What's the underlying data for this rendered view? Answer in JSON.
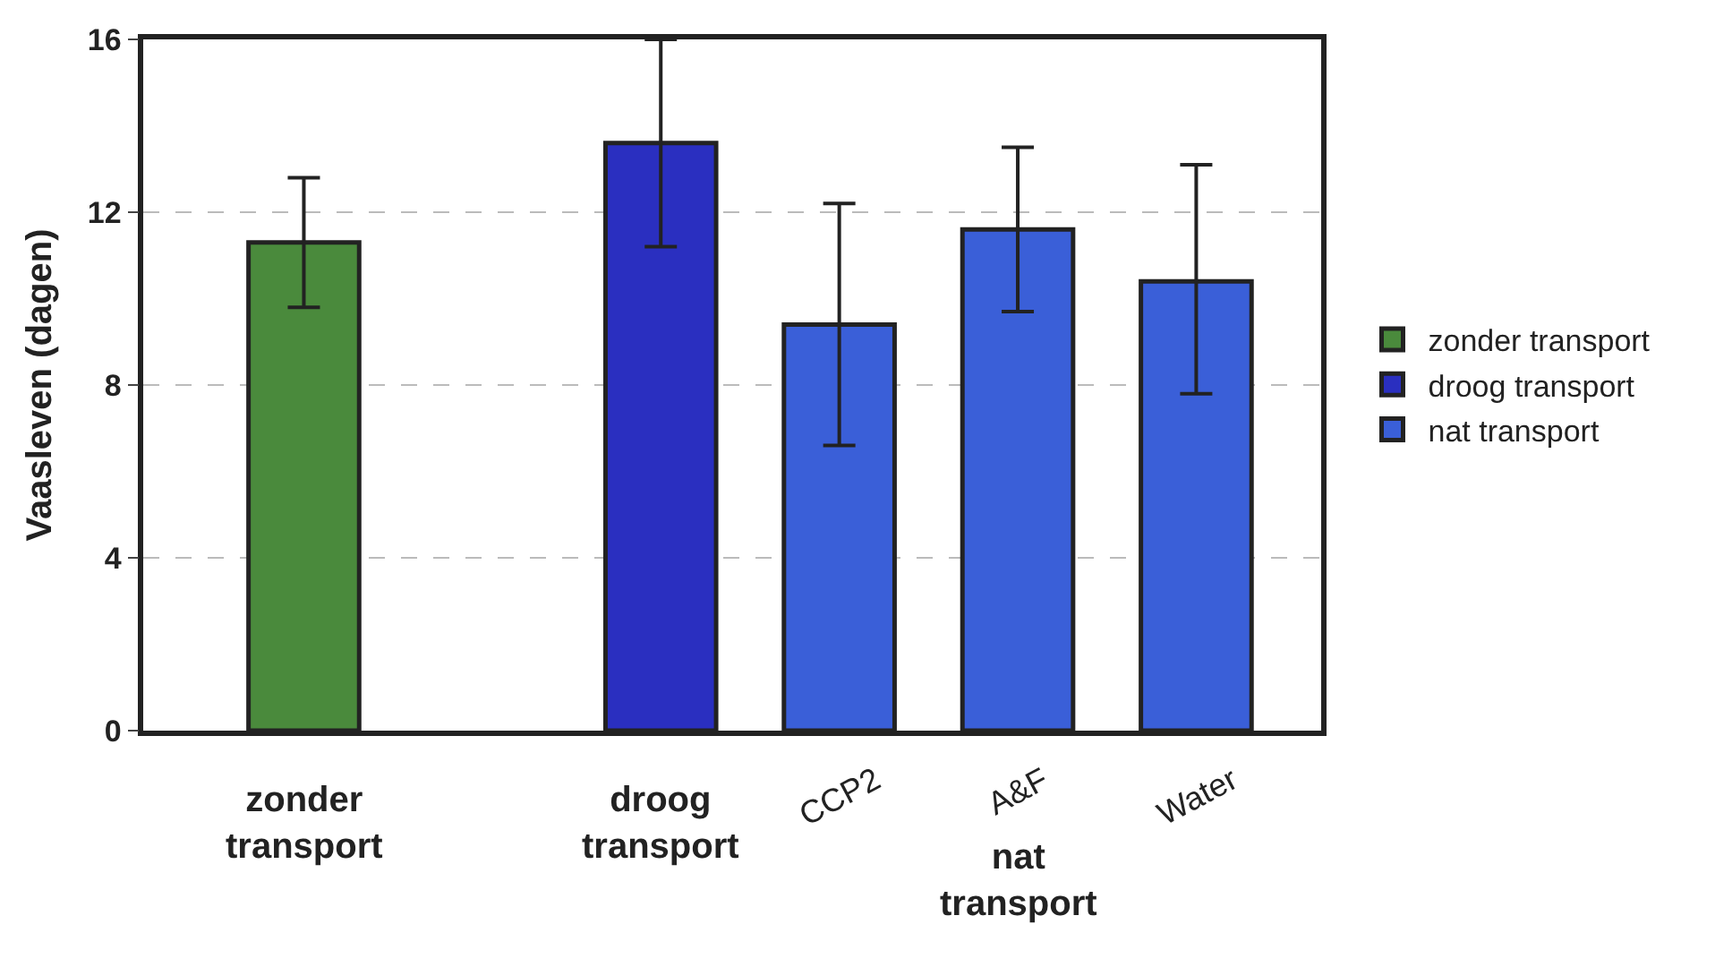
{
  "chart_data": {
    "type": "bar",
    "ylabel": "Vaasleven (dagen)",
    "categories": [
      "zonder transport",
      null,
      "droog transport",
      "CCP2",
      "A&F",
      "Water"
    ],
    "series": [
      {
        "name": "zonder transport",
        "color": "#4a8a3c",
        "values": [
          11.3,
          null,
          null,
          null,
          null,
          null
        ],
        "errors": [
          [
            9.8,
            12.8
          ],
          null,
          null,
          null,
          null,
          null
        ]
      },
      {
        "name": "droog transport",
        "color": "#2a2fc0",
        "values": [
          null,
          null,
          13.6,
          null,
          null,
          null
        ],
        "errors": [
          null,
          null,
          [
            11.2,
            16.0
          ],
          null,
          null,
          null
        ]
      },
      {
        "name": "nat transport",
        "color": "#3a5fd8",
        "values": [
          null,
          null,
          null,
          9.4,
          11.6,
          10.4
        ],
        "errors": [
          null,
          null,
          null,
          [
            6.6,
            12.2
          ],
          [
            9.7,
            13.5
          ],
          [
            7.8,
            13.1
          ]
        ]
      }
    ],
    "annotations": [
      "nat transport"
    ],
    "ylim": [
      0,
      16
    ],
    "yticks": [
      0,
      4,
      8,
      12,
      16
    ],
    "grid": "y",
    "legend": "right"
  }
}
